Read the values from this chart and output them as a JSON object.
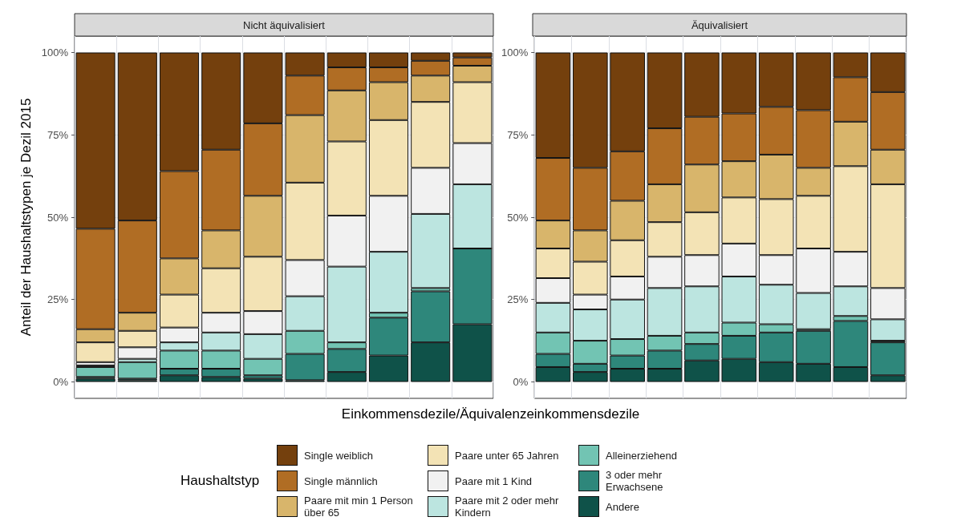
{
  "chart_data": [
    {
      "type": "bar",
      "stacked": true,
      "title": "Nicht äquivalisiert",
      "ylabel": "Anteil der Haushaltstypen je Dezil 2015",
      "xlabel": "Einkommensdezile/Äquivalenzeinkommensdezile",
      "legend_title": "Haushaltstyp",
      "legend": "bottom",
      "grid": true,
      "tick_labels": "y",
      "categories": [
        null,
        null,
        null,
        null,
        null,
        null,
        null,
        null,
        null,
        null
      ],
      "ylim": [
        -5,
        105
      ],
      "yticks": [
        {
          "value": 0,
          "label": "0%"
        },
        {
          "value": 25,
          "label": "25%"
        },
        {
          "value": 50,
          "label": "50%"
        },
        {
          "value": 75,
          "label": "75%"
        },
        {
          "value": 100,
          "label": "100%"
        }
      ],
      "series": [
        {
          "name": "Andere",
          "color": "#0f5249",
          "values": [
            1,
            0.5,
            2,
            1.5,
            1,
            0.5,
            3,
            8,
            12,
            17.5
          ]
        },
        {
          "name": "3 oder mehr Erwachsene",
          "color": "#2e877b",
          "values": [
            0.5,
            0.5,
            2,
            2.5,
            1,
            8,
            7,
            11.5,
            15.5,
            23
          ]
        },
        {
          "name": "Alleinerziehend",
          "color": "#72c4b3",
          "values": [
            3,
            5,
            5.5,
            5.5,
            5,
            7,
            2,
            1.5,
            1,
            0
          ]
        },
        {
          "name": "Paare mit 2 oder mehr Kindern",
          "color": "#bce5e0",
          "values": [
            0.5,
            1,
            2.5,
            5.5,
            7.5,
            10.5,
            23,
            18.5,
            22.5,
            19.5
          ]
        },
        {
          "name": "Paare mit 1 Kind",
          "color": "#f1f1f1",
          "values": [
            1,
            3.5,
            4.5,
            6,
            7,
            11,
            15.5,
            17,
            14,
            12.5
          ]
        },
        {
          "name": "Paare unter 65 Jahren",
          "color": "#f3e3b5",
          "values": [
            6,
            5,
            10,
            13.5,
            16.5,
            23.5,
            22.5,
            23,
            20,
            18.5
          ]
        },
        {
          "name": "Paare mit min 1 Person über 65",
          "color": "#d8b56b",
          "values": [
            4,
            5.5,
            11,
            11.5,
            18.5,
            20.5,
            15.5,
            11.5,
            8,
            5
          ]
        },
        {
          "name": "Single männlich",
          "color": "#b06d24",
          "values": [
            30.5,
            28,
            26.5,
            24.5,
            22,
            12,
            7,
            4.5,
            4.5,
            2.5
          ]
        },
        {
          "name": "Single weiblich",
          "color": "#74400d",
          "values": [
            53.5,
            51,
            36,
            29.5,
            21.5,
            7,
            4.5,
            4.5,
            2.5,
            1.5
          ]
        }
      ]
    },
    {
      "type": "bar",
      "stacked": true,
      "title": "Äquivalisiert",
      "legend": false,
      "grid": true,
      "tick_labels": "y",
      "categories": [
        null,
        null,
        null,
        null,
        null,
        null,
        null,
        null,
        null,
        null
      ],
      "ylim": [
        -5,
        105
      ],
      "yticks": [
        {
          "value": 0,
          "label": "0%"
        },
        {
          "value": 25,
          "label": "25%"
        },
        {
          "value": 50,
          "label": "50%"
        },
        {
          "value": 75,
          "label": "75%"
        },
        {
          "value": 100,
          "label": "100%"
        }
      ],
      "series": [
        {
          "color": "#0f5249",
          "values": [
            4.5,
            3,
            4,
            4,
            6.5,
            7,
            6,
            5.5,
            4.5,
            2
          ]
        },
        {
          "color": "#2e877b",
          "values": [
            4,
            2.5,
            4,
            5.5,
            5,
            7,
            9,
            10,
            14,
            10
          ]
        },
        {
          "color": "#72c4b3",
          "values": [
            6.5,
            7,
            5,
            4.5,
            3.5,
            4,
            2.5,
            0.5,
            1.5,
            0.5
          ]
        },
        {
          "color": "#bce5e0",
          "values": [
            9,
            9.5,
            12,
            14.5,
            14,
            14,
            12,
            11,
            9,
            6.5
          ]
        },
        {
          "color": "#f1f1f1",
          "values": [
            7.5,
            4.5,
            7,
            9.5,
            9.5,
            10,
            9,
            13.5,
            10.5,
            9.5
          ]
        },
        {
          "color": "#f3e3b5",
          "values": [
            9,
            10,
            11,
            10.5,
            13,
            14,
            17,
            16,
            26,
            31.5
          ]
        },
        {
          "color": "#d8b56b",
          "values": [
            8.5,
            9.5,
            12,
            11.5,
            14.5,
            11,
            13.5,
            8.5,
            13.5,
            10.5
          ]
        },
        {
          "color": "#b06d24",
          "values": [
            19,
            19,
            15,
            17,
            14.5,
            14.5,
            14.5,
            17.5,
            13.5,
            17.5
          ]
        },
        {
          "color": "#74400d",
          "values": [
            32,
            35,
            30,
            23,
            19.5,
            18.5,
            16.5,
            17.5,
            7.5,
            12
          ]
        }
      ]
    }
  ]
}
